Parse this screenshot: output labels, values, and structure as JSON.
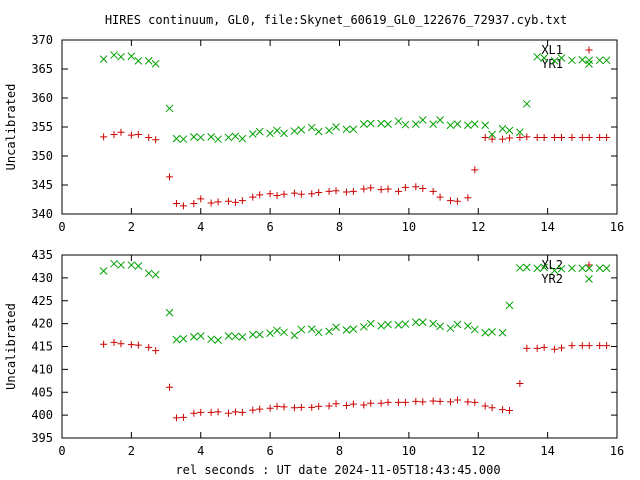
{
  "title": "HIRES continuum, GL0, file:Skynet_60619_GL0_122676_72937.cyb.txt",
  "xlabel": "rel seconds : UT date 2024-11-05T18:43:45.000",
  "colors": {
    "red": "#cc0000",
    "green": "#00a000"
  },
  "chart_data": [
    {
      "type": "scatter",
      "ylabel": "Uncalibrated",
      "xlim": [
        0,
        16
      ],
      "ylim": [
        340,
        370
      ],
      "xticks": [
        0,
        2,
        4,
        6,
        8,
        10,
        12,
        14,
        16
      ],
      "yticks": [
        340,
        345,
        350,
        355,
        360,
        365,
        370
      ],
      "legend": [
        {
          "label": "XL1",
          "marker": "+",
          "color": "#cc0000"
        },
        {
          "label": "YR1",
          "marker": "x",
          "color": "#00a000"
        }
      ],
      "series": [
        {
          "name": "XL1",
          "marker": "+",
          "color": "#cc0000",
          "x": [
            1.2,
            1.5,
            1.7,
            2.0,
            2.2,
            2.5,
            2.7,
            3.1,
            3.3,
            3.5,
            3.8,
            4.0,
            4.3,
            4.5,
            4.8,
            5.0,
            5.2,
            5.5,
            5.7,
            6.0,
            6.2,
            6.4,
            6.7,
            6.9,
            7.2,
            7.4,
            7.7,
            7.9,
            8.2,
            8.4,
            8.7,
            8.9,
            9.2,
            9.4,
            9.7,
            9.9,
            10.2,
            10.4,
            10.7,
            10.9,
            11.2,
            11.4,
            11.7,
            11.9,
            12.2,
            12.4,
            12.7,
            12.9,
            13.2,
            13.4,
            13.7,
            13.9,
            14.2,
            14.4,
            14.7,
            15.0,
            15.2,
            15.5,
            15.7
          ],
          "y": [
            353.3,
            353.7,
            354.1,
            353.6,
            353.7,
            353.2,
            352.8,
            346.4,
            341.8,
            341.4,
            341.8,
            342.6,
            341.9,
            342.1,
            342.2,
            342.0,
            342.3,
            342.9,
            343.3,
            343.5,
            343.2,
            343.4,
            343.6,
            343.4,
            343.5,
            343.7,
            343.9,
            344.0,
            343.8,
            343.9,
            344.3,
            344.5,
            344.2,
            344.3,
            343.9,
            344.6,
            344.7,
            344.4,
            343.9,
            342.9,
            342.3,
            342.2,
            342.8,
            347.6,
            353.2,
            352.9,
            352.9,
            353.1,
            353.2,
            353.3,
            353.2,
            353.2,
            353.2,
            353.2,
            353.2,
            353.2,
            353.2,
            353.2,
            353.2
          ]
        },
        {
          "name": "YR1",
          "marker": "x",
          "color": "#00a000",
          "x": [
            1.2,
            1.5,
            1.7,
            2.0,
            2.2,
            2.5,
            2.7,
            3.1,
            3.3,
            3.5,
            3.8,
            4.0,
            4.3,
            4.5,
            4.8,
            5.0,
            5.2,
            5.5,
            5.7,
            6.0,
            6.2,
            6.4,
            6.7,
            6.9,
            7.2,
            7.4,
            7.7,
            7.9,
            8.2,
            8.4,
            8.7,
            8.9,
            9.2,
            9.4,
            9.7,
            9.9,
            10.2,
            10.4,
            10.7,
            10.9,
            11.2,
            11.4,
            11.7,
            11.9,
            12.2,
            12.4,
            12.7,
            12.9,
            13.2,
            13.4,
            13.7,
            13.9,
            14.2,
            14.4,
            14.7,
            15.0,
            15.2,
            15.5,
            15.7
          ],
          "y": [
            366.7,
            367.4,
            367.1,
            367.2,
            366.4,
            366.4,
            365.9,
            358.2,
            353.0,
            352.9,
            353.3,
            353.2,
            353.3,
            352.9,
            353.2,
            353.4,
            353.0,
            353.8,
            354.2,
            353.9,
            354.4,
            353.9,
            354.3,
            354.5,
            354.9,
            354.2,
            354.4,
            355.0,
            354.6,
            354.6,
            355.5,
            355.6,
            355.6,
            355.5,
            356.0,
            355.4,
            355.5,
            356.2,
            355.5,
            356.2,
            355.3,
            355.5,
            355.3,
            355.5,
            355.3,
            353.7,
            354.7,
            354.4,
            354.1,
            359.0,
            367.1,
            366.9,
            366.4,
            366.9,
            366.5,
            366.6,
            366.5,
            366.5,
            366.5
          ]
        }
      ]
    },
    {
      "type": "scatter",
      "ylabel": "Uncalibrated",
      "xlim": [
        0,
        16
      ],
      "ylim": [
        395,
        435
      ],
      "xticks": [
        0,
        2,
        4,
        6,
        8,
        10,
        12,
        14,
        16
      ],
      "yticks": [
        395,
        400,
        405,
        410,
        415,
        420,
        425,
        430,
        435
      ],
      "legend": [
        {
          "label": "XL2",
          "marker": "+",
          "color": "#cc0000"
        },
        {
          "label": "YR2",
          "marker": "x",
          "color": "#00a000"
        }
      ],
      "series": [
        {
          "name": "XL2",
          "marker": "+",
          "color": "#cc0000",
          "x": [
            1.2,
            1.5,
            1.7,
            2.0,
            2.2,
            2.5,
            2.7,
            3.1,
            3.3,
            3.5,
            3.8,
            4.0,
            4.3,
            4.5,
            4.8,
            5.0,
            5.2,
            5.5,
            5.7,
            6.0,
            6.2,
            6.4,
            6.7,
            6.9,
            7.2,
            7.4,
            7.7,
            7.9,
            8.2,
            8.4,
            8.7,
            8.9,
            9.2,
            9.4,
            9.7,
            9.9,
            10.2,
            10.4,
            10.7,
            10.9,
            11.2,
            11.4,
            11.7,
            11.9,
            12.2,
            12.4,
            12.7,
            12.9,
            13.2,
            13.4,
            13.7,
            13.9,
            14.2,
            14.4,
            14.7,
            15.0,
            15.2,
            15.5,
            15.7
          ],
          "y": [
            415.5,
            415.9,
            415.6,
            415.4,
            415.3,
            414.8,
            414.1,
            406.1,
            399.4,
            399.5,
            400.4,
            400.6,
            400.6,
            400.7,
            400.4,
            400.7,
            400.6,
            401.1,
            401.3,
            401.5,
            401.9,
            401.8,
            401.6,
            401.7,
            401.7,
            401.9,
            402.0,
            402.5,
            402.1,
            402.4,
            402.2,
            402.6,
            402.6,
            402.8,
            402.8,
            402.8,
            403.0,
            402.9,
            403.1,
            403.0,
            402.9,
            403.3,
            402.9,
            402.8,
            402.0,
            401.6,
            401.2,
            401.0,
            406.9,
            414.6,
            414.6,
            414.8,
            414.4,
            414.7,
            415.2,
            415.2,
            415.2,
            415.2,
            415.2
          ],
          "note": ""
        },
        {
          "name": "YR2",
          "marker": "x",
          "color": "#00a000",
          "x": [
            1.2,
            1.5,
            1.7,
            2.0,
            2.2,
            2.5,
            2.7,
            3.1,
            3.3,
            3.5,
            3.8,
            4.0,
            4.3,
            4.5,
            4.8,
            5.0,
            5.2,
            5.5,
            5.7,
            6.0,
            6.2,
            6.4,
            6.7,
            6.9,
            7.2,
            7.4,
            7.7,
            7.9,
            8.2,
            8.4,
            8.7,
            8.9,
            9.2,
            9.4,
            9.7,
            9.9,
            10.2,
            10.4,
            10.7,
            10.9,
            11.2,
            11.4,
            11.7,
            11.9,
            12.2,
            12.4,
            12.7,
            12.9,
            13.2,
            13.4,
            13.7,
            13.9,
            14.2,
            14.4,
            14.7,
            15.0,
            15.2,
            15.5,
            15.7
          ],
          "y": [
            431.5,
            433.1,
            432.8,
            432.8,
            432.6,
            431.0,
            430.7,
            422.4,
            416.5,
            416.7,
            417.1,
            417.3,
            416.6,
            416.4,
            417.3,
            417.2,
            417.1,
            417.6,
            417.6,
            417.9,
            418.5,
            418.1,
            417.4,
            418.7,
            418.8,
            418.1,
            418.3,
            419.2,
            418.6,
            418.8,
            419.3,
            420.0,
            419.5,
            419.8,
            419.7,
            419.9,
            420.3,
            420.3,
            420.0,
            419.4,
            419.0,
            419.8,
            419.5,
            418.7,
            418.0,
            418.2,
            418.0,
            424.0,
            432.2,
            432.3,
            432.1,
            432.3,
            431.6,
            432.0,
            432.1,
            432.1,
            432.1,
            432.1,
            432.1
          ]
        }
      ]
    }
  ]
}
